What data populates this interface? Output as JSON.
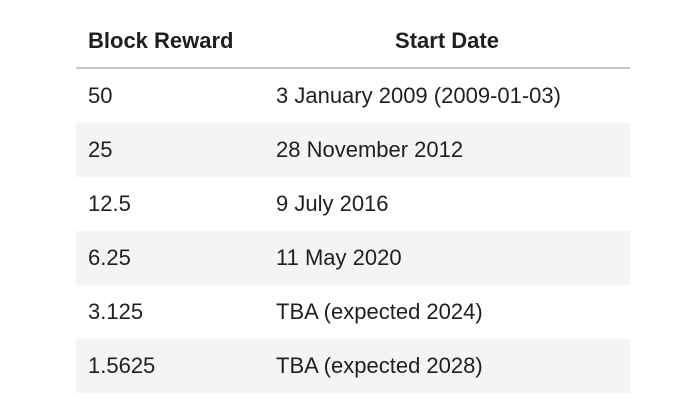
{
  "table": {
    "headers": [
      "Block Reward",
      "Start Date"
    ],
    "rows": [
      [
        "50",
        "3 January 2009 (2009-01-03)"
      ],
      [
        "25",
        "28 November 2012"
      ],
      [
        "12.5",
        "9 July 2016"
      ],
      [
        "6.25",
        "11 May 2020"
      ],
      [
        "3.125",
        "TBA (expected 2024)"
      ],
      [
        "1.5625",
        "TBA (expected 2028)"
      ]
    ]
  }
}
